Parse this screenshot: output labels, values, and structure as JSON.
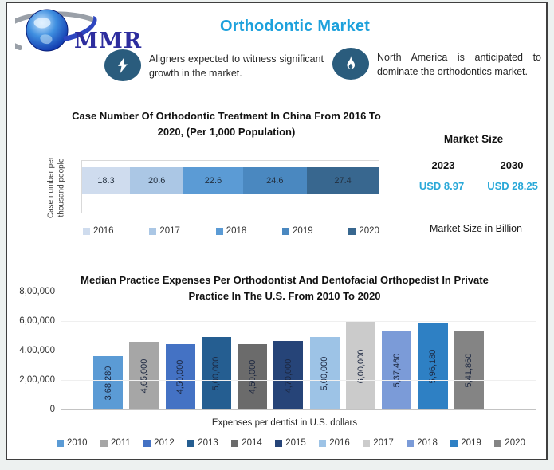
{
  "header": {
    "brand": "MMR",
    "title": "Orthodontic Market",
    "title_color": "#1da1dc"
  },
  "callouts": [
    {
      "icon": "lightning-icon",
      "text": "Aligners expected to witness significant growth in the market."
    },
    {
      "icon": "flame-icon",
      "text": "North America is anticipated to dominate the orthodontics market."
    }
  ],
  "market_size": {
    "heading": "Market Size",
    "items": [
      {
        "year": "2023",
        "value": "USD 8.97"
      },
      {
        "year": "2030",
        "value": "USD 28.25"
      }
    ],
    "note": "Market Size in Billion",
    "value_color": "#29a8d8"
  },
  "chart_data": [
    {
      "type": "bar",
      "variant": "horizontal-stacked",
      "title": "Case Number Of Orthodontic Treatment In China From 2016 To 2020, (Per 1,000 Population)",
      "ylabel": "Case number per thousand people",
      "categories": [
        "2016",
        "2017",
        "2018",
        "2019",
        "2020"
      ],
      "values": [
        18.3,
        20.6,
        22.6,
        24.6,
        27.4
      ],
      "colors": [
        "#cfdcee",
        "#abc7e5",
        "#5b9bd5",
        "#4a88c0",
        "#38678f"
      ],
      "legend_position": "bottom",
      "grid": false
    },
    {
      "type": "bar",
      "variant": "vertical",
      "title": "Median Practice Expenses Per Orthodontist And Dentofacial Orthopedist In Private Practice In The U.S. From 2010 To 2020",
      "xlabel": "Expenses per dentist in U.S. dollars",
      "categories": [
        "2010",
        "2011",
        "2012",
        "2013",
        "2014",
        "2015",
        "2016",
        "2017",
        "2018",
        "2019",
        "2020"
      ],
      "values": [
        368280,
        465000,
        450000,
        500000,
        450000,
        470000,
        500000,
        600000,
        537460,
        596180,
        541860
      ],
      "labels": [
        "3,68,280",
        "4,65,000",
        "4,50,000",
        "5,00,000",
        "4,50,000",
        "4,70,000",
        "5,00,000",
        "6,00,000",
        "5,37,460",
        "5,96,180",
        "5,41,860"
      ],
      "colors": [
        "#5b9bd5",
        "#a6a6a6",
        "#4472c4",
        "#255e91",
        "#6b6b6b",
        "#264478",
        "#9dc3e6",
        "#cbcbcb",
        "#7b9bd8",
        "#2e80c4",
        "#848484"
      ],
      "ylim": [
        0,
        800000
      ],
      "yticks": [
        {
          "label": "8,00,000",
          "value": 800000
        },
        {
          "label": "6,00,000",
          "value": 600000
        },
        {
          "label": "4,00,000",
          "value": 400000
        },
        {
          "label": "2,00,000",
          "value": 200000
        },
        {
          "label": "0",
          "value": 0
        }
      ],
      "legend_position": "bottom",
      "grid": true
    }
  ]
}
